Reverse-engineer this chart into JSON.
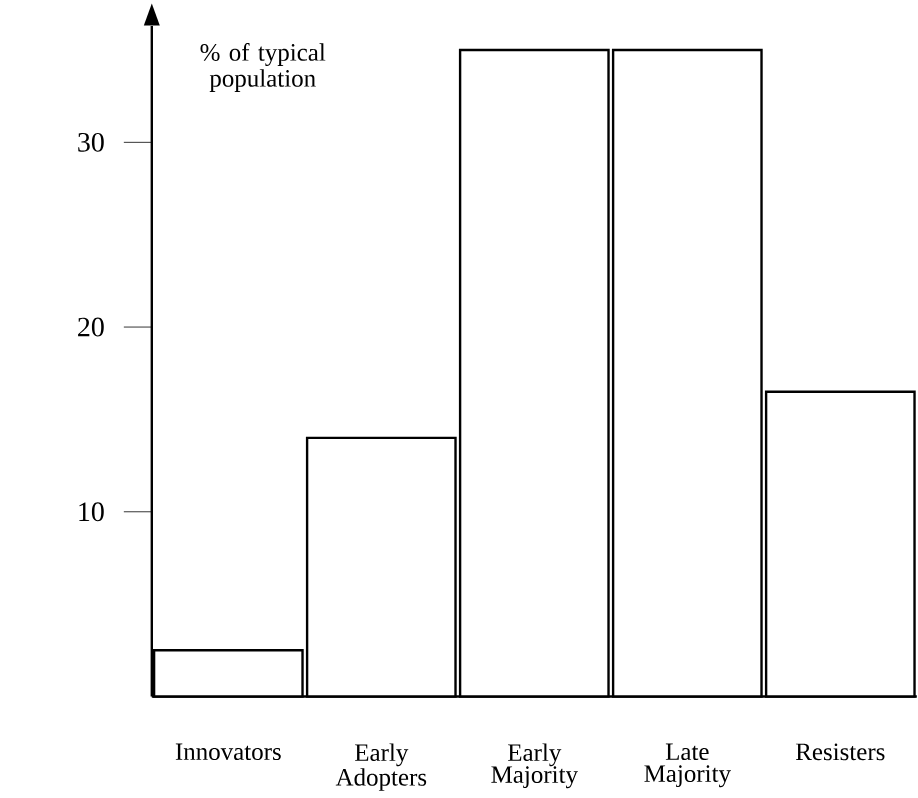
{
  "chart_data": {
    "type": "bar",
    "ylabel": "% of typical population",
    "categories": [
      "Innovators",
      "Early Adopters",
      "Early Majority",
      "Late Majority",
      "Resisters"
    ],
    "values": [
      2.5,
      14,
      35,
      35,
      16.5
    ],
    "color": "#ffffff",
    "ylim": [
      0,
      36.3
    ],
    "yticks": [
      10,
      20,
      30
    ],
    "grid": false
  }
}
